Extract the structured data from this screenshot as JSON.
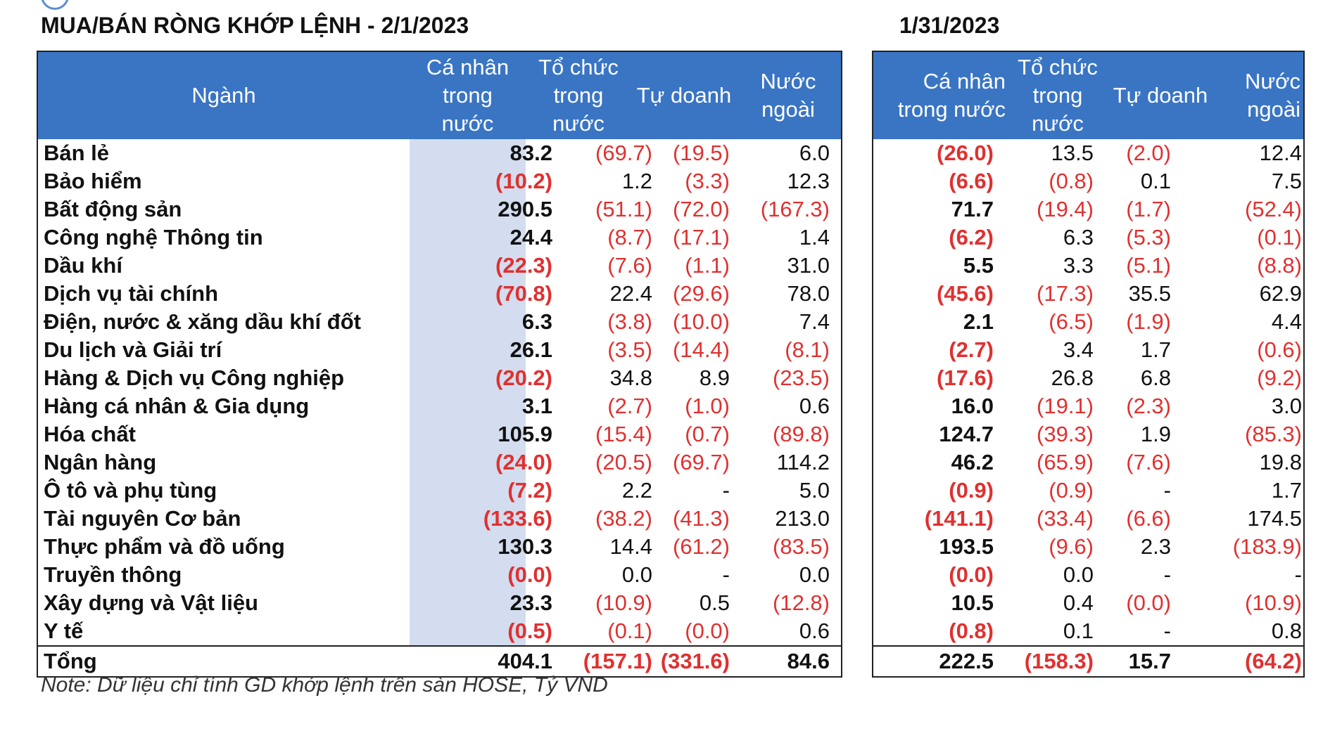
{
  "titles": {
    "left": "MUA/BÁN RÒNG KHỚP LỆNH - 2/1/2023",
    "right": "1/31/2023"
  },
  "headers": {
    "sector": "Ngành",
    "individual": "Cá nhân\ntrong\nnước",
    "institution": "Tổ chức\ntrong\nnước",
    "proprietary": "Tự doanh",
    "foreign": "Nước\nngoài",
    "individual_right": "Cá nhân\ntrong nước",
    "institution_right": "Tổ chức\ntrong\nnước",
    "proprietary_right": "Tự doanh",
    "foreign_right": "Nước\nngoài"
  },
  "rows": [
    {
      "sector": "Bán lẻ",
      "left": [
        "83.2",
        "(69.7)",
        "(19.5)",
        "6.0"
      ],
      "right": [
        "(26.0)",
        "13.5",
        "(2.0)",
        "12.4"
      ]
    },
    {
      "sector": "Bảo hiểm",
      "left": [
        "(10.2)",
        "1.2",
        "(3.3)",
        "12.3"
      ],
      "right": [
        "(6.6)",
        "(0.8)",
        "0.1",
        "7.5"
      ]
    },
    {
      "sector": "Bất động sản",
      "left": [
        "290.5",
        "(51.1)",
        "(72.0)",
        "(167.3)"
      ],
      "right": [
        "71.7",
        "(19.4)",
        "(1.7)",
        "(52.4)"
      ]
    },
    {
      "sector": "Công nghệ Thông tin",
      "left": [
        "24.4",
        "(8.7)",
        "(17.1)",
        "1.4"
      ],
      "right": [
        "(6.2)",
        "6.3",
        "(5.3)",
        "(0.1)"
      ]
    },
    {
      "sector": "Dầu khí",
      "left": [
        "(22.3)",
        "(7.6)",
        "(1.1)",
        "31.0"
      ],
      "right": [
        "5.5",
        "3.3",
        "(5.1)",
        "(8.8)"
      ]
    },
    {
      "sector": "Dịch vụ tài chính",
      "left": [
        "(70.8)",
        "22.4",
        "(29.6)",
        "78.0"
      ],
      "right": [
        "(45.6)",
        "(17.3)",
        "35.5",
        "62.9"
      ]
    },
    {
      "sector": "Điện, nước & xăng dầu khí đốt",
      "left": [
        "6.3",
        "(3.8)",
        "(10.0)",
        "7.4"
      ],
      "right": [
        "2.1",
        "(6.5)",
        "(1.9)",
        "4.4"
      ]
    },
    {
      "sector": "Du lịch và Giải trí",
      "left": [
        "26.1",
        "(3.5)",
        "(14.4)",
        "(8.1)"
      ],
      "right": [
        "(2.7)",
        "3.4",
        "1.7",
        "(0.6)"
      ]
    },
    {
      "sector": "Hàng & Dịch vụ Công nghiệp",
      "left": [
        "(20.2)",
        "34.8",
        "8.9",
        "(23.5)"
      ],
      "right": [
        "(17.6)",
        "26.8",
        "6.8",
        "(9.2)"
      ]
    },
    {
      "sector": "Hàng cá nhân & Gia dụng",
      "left": [
        "3.1",
        "(2.7)",
        "(1.0)",
        "0.6"
      ],
      "right": [
        "16.0",
        "(19.1)",
        "(2.3)",
        "3.0"
      ]
    },
    {
      "sector": "Hóa chất",
      "left": [
        "105.9",
        "(15.4)",
        "(0.7)",
        "(89.8)"
      ],
      "right": [
        "124.7",
        "(39.3)",
        "1.9",
        "(85.3)"
      ]
    },
    {
      "sector": "Ngân hàng",
      "left": [
        "(24.0)",
        "(20.5)",
        "(69.7)",
        "114.2"
      ],
      "right": [
        "46.2",
        "(65.9)",
        "(7.6)",
        "19.8"
      ]
    },
    {
      "sector": "Ô tô và phụ tùng",
      "left": [
        "(7.2)",
        "2.2",
        "-",
        "5.0"
      ],
      "right": [
        "(0.9)",
        "(0.9)",
        "-",
        "1.7"
      ]
    },
    {
      "sector": "Tài nguyên Cơ bản",
      "left": [
        "(133.6)",
        "(38.2)",
        "(41.3)",
        "213.0"
      ],
      "right": [
        "(141.1)",
        "(33.4)",
        "(6.6)",
        "174.5"
      ]
    },
    {
      "sector": "Thực phẩm và đồ uống",
      "left": [
        "130.3",
        "14.4",
        "(61.2)",
        "(83.5)"
      ],
      "right": [
        "193.5",
        "(9.6)",
        "2.3",
        "(183.9)"
      ]
    },
    {
      "sector": "Truyền thông",
      "left": [
        "(0.0)",
        "0.0",
        "-",
        "0.0"
      ],
      "right": [
        "(0.0)",
        "0.0",
        "-",
        "-"
      ]
    },
    {
      "sector": "Xây dựng và Vật liệu",
      "left": [
        "23.3",
        "(10.9)",
        "0.5",
        "(12.8)"
      ],
      "right": [
        "10.5",
        "0.4",
        "(0.0)",
        "(10.9)"
      ]
    },
    {
      "sector": "Y tế",
      "left": [
        "(0.5)",
        "(0.1)",
        "(0.0)",
        "0.6"
      ],
      "right": [
        "(0.8)",
        "0.1",
        "-",
        "0.8"
      ]
    }
  ],
  "total": {
    "label": "Tổng",
    "left": [
      "404.1",
      "(157.1)",
      "(331.6)",
      "84.6"
    ],
    "right": [
      "222.5",
      "(158.3)",
      "15.7",
      "(64.2)"
    ]
  },
  "note": "Note: Dữ liệu chỉ tính GD khớp lệnh trên sàn HOSE, Tỷ VND",
  "colors": {
    "header_bg": "#3a75c4",
    "highlight_col": "#d3ddef",
    "negative": "#e03030"
  }
}
